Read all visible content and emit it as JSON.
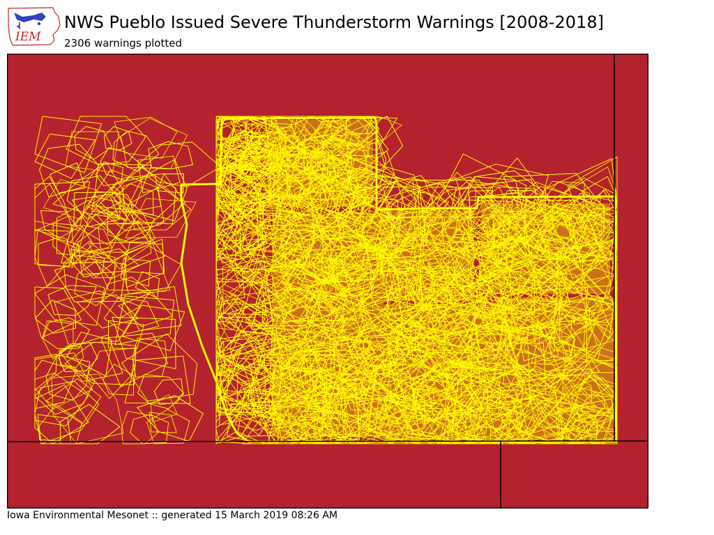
{
  "header": {
    "title": "NWS Pueblo Issued Severe Thunderstorm Warnings [2008-2018]",
    "subtitle": "2306 warnings plotted"
  },
  "logo": {
    "text": "IEM",
    "icon": "iowa-state-outline-icon"
  },
  "footer": {
    "text": "Iowa Environmental Mesonet :: generated 15 March 2019 08:26 AM"
  },
  "map": {
    "background_color": "#b3222d",
    "warning_fill_color": "#ffff00",
    "warning_outline_color": "#ffee00",
    "border_color": "#000000",
    "warning_count": 2306
  }
}
